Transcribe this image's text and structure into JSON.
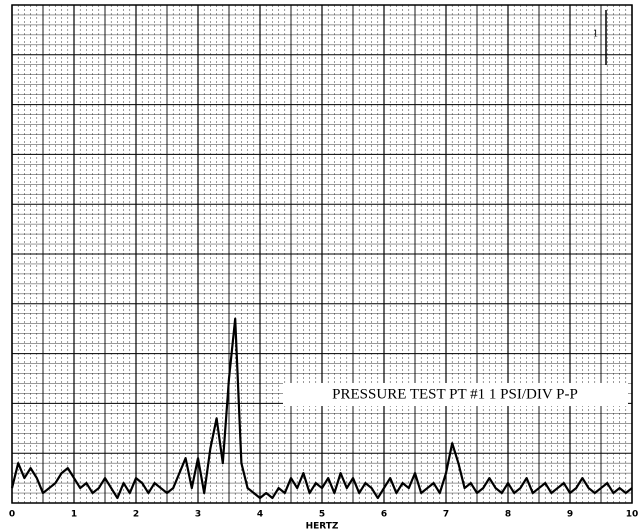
{
  "chart_data": {
    "type": "line",
    "annotation": "PRESSURE TEST PT #1 1 PSI/DIV P-P",
    "x_label": "HERTZ",
    "scale_marker": "1",
    "x": [
      0,
      0.1,
      0.2,
      0.3,
      0.4,
      0.5,
      0.6,
      0.7,
      0.8,
      0.9,
      1,
      1.1,
      1.2,
      1.3,
      1.4,
      1.5,
      1.6,
      1.7,
      1.8,
      1.9,
      2,
      2.1,
      2.2,
      2.3,
      2.4,
      2.5,
      2.6,
      2.7,
      2.8,
      2.9,
      3,
      3.1,
      3.2,
      3.3,
      3.4,
      3.5,
      3.6,
      3.7,
      3.8,
      3.9,
      4,
      4.1,
      4.2,
      4.3,
      4.4,
      4.5,
      4.6,
      4.7,
      4.8,
      4.9,
      5,
      5.1,
      5.2,
      5.3,
      5.4,
      5.5,
      5.6,
      5.7,
      5.8,
      5.9,
      6,
      6.1,
      6.2,
      6.3,
      6.4,
      6.5,
      6.6,
      6.7,
      6.8,
      6.9,
      7,
      7.1,
      7.2,
      7.3,
      7.4,
      7.5,
      7.6,
      7.7,
      7.8,
      7.9,
      8,
      8.1,
      8.2,
      8.3,
      8.4,
      8.5,
      8.6,
      8.7,
      8.8,
      8.9,
      9,
      9.1,
      9.2,
      9.3,
      9.4,
      9.5,
      9.6,
      9.7,
      9.8,
      9.9,
      10
    ],
    "values": [
      0.3,
      0.8,
      0.5,
      0.7,
      0.5,
      0.2,
      0.3,
      0.4,
      0.6,
      0.7,
      0.5,
      0.3,
      0.4,
      0.2,
      0.3,
      0.5,
      0.3,
      0.1,
      0.4,
      0.2,
      0.5,
      0.4,
      0.2,
      0.4,
      0.3,
      0.2,
      0.3,
      0.6,
      0.9,
      0.3,
      0.9,
      0.2,
      1.1,
      1.7,
      0.8,
      2.5,
      3.7,
      0.8,
      0.3,
      0.2,
      0.1,
      0.2,
      0.1,
      0.3,
      0.2,
      0.5,
      0.3,
      0.6,
      0.2,
      0.4,
      0.3,
      0.5,
      0.2,
      0.6,
      0.3,
      0.5,
      0.2,
      0.4,
      0.3,
      0.1,
      0.3,
      0.5,
      0.2,
      0.4,
      0.3,
      0.6,
      0.2,
      0.3,
      0.4,
      0.2,
      0.6,
      1.2,
      0.8,
      0.3,
      0.4,
      0.2,
      0.3,
      0.5,
      0.3,
      0.2,
      0.4,
      0.2,
      0.3,
      0.5,
      0.2,
      0.3,
      0.4,
      0.2,
      0.3,
      0.4,
      0.2,
      0.3,
      0.5,
      0.3,
      0.2,
      0.3,
      0.4,
      0.2,
      0.3,
      0.2,
      0.3
    ],
    "color": "#000000",
    "xlim": [
      0,
      10
    ],
    "xticks": [
      0,
      1,
      2,
      3,
      4,
      5,
      6,
      7,
      8,
      9,
      10
    ],
    "ylim": [
      0,
      10
    ],
    "grid": true
  }
}
